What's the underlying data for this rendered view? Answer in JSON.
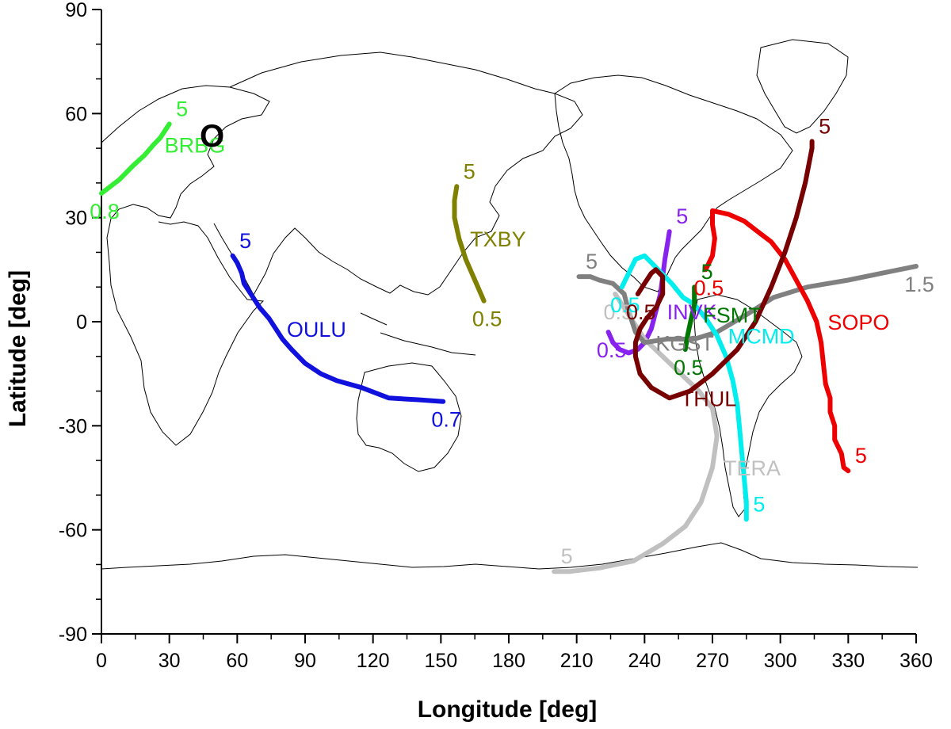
{
  "chart_data": {
    "type": "line",
    "title": "",
    "xlabel": "Longitude [deg]",
    "ylabel": "Latitude [deg]",
    "xlim": [
      0,
      360
    ],
    "ylim": [
      -90,
      90
    ],
    "xticks": [
      "0",
      "30",
      "60",
      "90",
      "120",
      "150",
      "180",
      "210",
      "240",
      "270",
      "300",
      "330",
      "360"
    ],
    "yticks": [
      "90",
      "60",
      "30",
      "0",
      "-30",
      "-60",
      "-90"
    ],
    "grid": false,
    "legend": "none",
    "marker_label": "O",
    "series": [
      {
        "name": "BRBG",
        "color": "#33ee33",
        "start_label": "0.8",
        "end_label": "5",
        "points": [
          [
            0,
            37
          ],
          [
            8,
            41
          ],
          [
            14,
            45
          ],
          [
            19,
            48
          ],
          [
            23,
            51
          ],
          [
            26,
            53
          ],
          [
            29,
            56
          ],
          [
            30,
            57
          ]
        ]
      },
      {
        "name": "OULU",
        "color": "#1111dd",
        "start_label": "0.7",
        "end_label": "5",
        "points": [
          [
            151,
            -23
          ],
          [
            140,
            -22.5
          ],
          [
            127,
            -22
          ],
          [
            115,
            -19
          ],
          [
            104,
            -17
          ],
          [
            97,
            -15
          ],
          [
            90,
            -12
          ],
          [
            84,
            -8
          ],
          [
            80,
            -5
          ],
          [
            77,
            -2
          ],
          [
            74,
            1
          ],
          [
            70,
            4
          ],
          [
            66,
            8
          ],
          [
            63,
            11
          ],
          [
            62,
            14
          ],
          [
            60,
            17
          ],
          [
            58,
            19
          ]
        ]
      },
      {
        "name": "TXBY",
        "color": "#808000",
        "start_label": "0.5",
        "end_label": "5",
        "points": [
          [
            169,
            6
          ],
          [
            165,
            12
          ],
          [
            161,
            18
          ],
          [
            158,
            24
          ],
          [
            156,
            30
          ],
          [
            156,
            35
          ],
          [
            157,
            39
          ]
        ]
      },
      {
        "name": "INVK",
        "color": "#8822ee",
        "start_label": "0.5",
        "end_label": "5",
        "points": [
          [
            224,
            -3
          ],
          [
            226,
            -6
          ],
          [
            229,
            -8
          ],
          [
            233,
            -9
          ],
          [
            237,
            -8
          ],
          [
            240,
            -6
          ],
          [
            243,
            -2
          ],
          [
            245,
            3
          ],
          [
            247,
            8
          ],
          [
            248,
            13
          ],
          [
            249,
            18
          ],
          [
            250,
            22
          ],
          [
            251,
            26
          ]
        ]
      },
      {
        "name": "TERA",
        "color": "#c0c0c0",
        "start_label": "0.5",
        "end_label": "5",
        "points": [
          [
            227,
            8
          ],
          [
            232,
            3
          ],
          [
            240,
            -5
          ],
          [
            248,
            -10
          ],
          [
            256,
            -15
          ],
          [
            264,
            -20
          ],
          [
            270,
            -25
          ],
          [
            272,
            -33
          ],
          [
            270,
            -42
          ],
          [
            265,
            -52
          ],
          [
            258,
            -59
          ],
          [
            248,
            -64
          ],
          [
            235,
            -69
          ],
          [
            220,
            -71
          ],
          [
            207,
            -72
          ],
          [
            200,
            -72
          ]
        ]
      },
      {
        "name": "KGST",
        "color": "#808080",
        "start_label": "1.5",
        "end_label": "5",
        "points": [
          [
            360,
            16
          ],
          [
            345,
            14
          ],
          [
            330,
            12
          ],
          [
            312,
            10
          ],
          [
            297,
            7
          ],
          [
            285,
            2
          ],
          [
            272,
            -3
          ],
          [
            262,
            -5
          ],
          [
            250,
            -5
          ],
          [
            240,
            -6
          ],
          [
            236,
            -3
          ],
          [
            233,
            3
          ],
          [
            231,
            8
          ],
          [
            226,
            11
          ],
          [
            220,
            12
          ],
          [
            216,
            13
          ],
          [
            211,
            13
          ]
        ]
      },
      {
        "name": "MCMD",
        "color": "#00eeee",
        "start_label": "0.5",
        "end_label": "5",
        "points": [
          [
            230,
            10
          ],
          [
            233,
            14
          ],
          [
            236,
            18
          ],
          [
            240,
            19
          ],
          [
            246,
            15
          ],
          [
            252,
            11
          ],
          [
            257,
            7
          ],
          [
            262,
            5
          ],
          [
            267,
            1
          ],
          [
            272,
            -4
          ],
          [
            276,
            -10
          ],
          [
            279,
            -17
          ],
          [
            281,
            -24
          ],
          [
            282,
            -31
          ],
          [
            283,
            -38
          ],
          [
            284,
            -45
          ],
          [
            285,
            -52
          ],
          [
            285,
            -57
          ]
        ]
      },
      {
        "name": "FSMT",
        "color": "#007700",
        "start_label": "0.5",
        "end_label": "5",
        "points": [
          [
            258,
            -8
          ],
          [
            259,
            -4
          ],
          [
            260,
            -1
          ],
          [
            261,
            2
          ],
          [
            262,
            5
          ],
          [
            262,
            8
          ],
          [
            262,
            10
          ]
        ]
      },
      {
        "name": "SOPO",
        "color": "#ee0000",
        "start_label": "0.5",
        "end_label": "5",
        "points": [
          [
            267,
            15
          ],
          [
            270,
            19
          ],
          [
            271,
            24
          ],
          [
            270,
            28
          ],
          [
            270,
            32
          ],
          [
            277,
            31
          ],
          [
            284,
            29
          ],
          [
            290,
            26
          ],
          [
            296,
            23
          ],
          [
            302,
            18
          ],
          [
            307,
            12
          ],
          [
            312,
            6
          ],
          [
            316,
            0
          ],
          [
            318,
            -6
          ],
          [
            319,
            -12
          ],
          [
            320,
            -18
          ],
          [
            322,
            -22
          ],
          [
            322,
            -26
          ],
          [
            324,
            -30
          ],
          [
            324,
            -34
          ],
          [
            327,
            -38
          ],
          [
            328,
            -42
          ],
          [
            330,
            -43
          ]
        ]
      },
      {
        "name": "THUL",
        "color": "#770000",
        "start_label": "0.5",
        "end_label": "5",
        "points": [
          [
            237,
            8
          ],
          [
            240,
            11
          ],
          [
            243,
            14
          ],
          [
            245,
            15
          ],
          [
            248,
            13
          ],
          [
            248,
            8
          ],
          [
            245,
            4
          ],
          [
            241,
            1
          ],
          [
            238,
            -2
          ],
          [
            236,
            -6
          ],
          [
            236,
            -10
          ],
          [
            238,
            -15
          ],
          [
            243,
            -19
          ],
          [
            251,
            -22
          ],
          [
            260,
            -20
          ],
          [
            270,
            -15
          ],
          [
            281,
            -8
          ],
          [
            289,
            0
          ],
          [
            296,
            10
          ],
          [
            302,
            20
          ],
          [
            307,
            30
          ],
          [
            311,
            40
          ],
          [
            314,
            50
          ],
          [
            314,
            52
          ]
        ]
      }
    ]
  }
}
